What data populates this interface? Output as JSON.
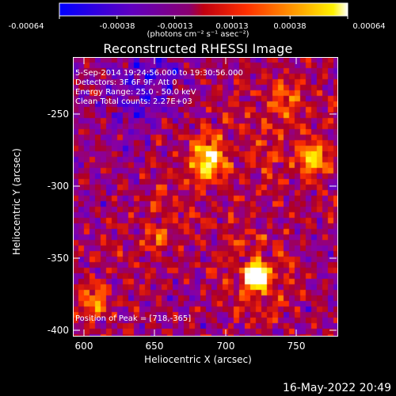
{
  "colorbar": {
    "ticks": [
      "-0.00064",
      "-0.00038",
      "-0.00013",
      "0.00013",
      "0.00038",
      "0.00064"
    ],
    "unit_label": "(photons cm⁻² s⁻¹ asec⁻²)"
  },
  "plot": {
    "title": "Reconstructed RHESSI Image",
    "info_lines": [
      "5-Sep-2014 19:24:56.000 to 19:30:56.000",
      "Detectors: 3F 6F 9F, Att 0",
      "Energy Range: 25.0 - 50.0 keV",
      "Clean     Total counts: 2.27E+03"
    ],
    "peak_label": "Position of Peak = [718,-365]",
    "xlabel": "Heliocentric X (arcsec)",
    "ylabel": "Heliocentric Y (arcsec)",
    "x_ticks": [
      "600",
      "650",
      "700",
      "750"
    ],
    "y_ticks": [
      "-250",
      "-300",
      "-350",
      "-400"
    ]
  },
  "footer": {
    "timestamp": "16-May-2022 20:49"
  },
  "chart_data": {
    "type": "heatmap",
    "title": "Reconstructed RHESSI Image",
    "xlabel": "Heliocentric X (arcsec)",
    "ylabel": "Heliocentric Y (arcsec)",
    "xlim": [
      585,
      778
    ],
    "ylim": [
      -405,
      -225
    ],
    "colorbar_range": [
      -0.00064,
      0.00064
    ],
    "peak_position": [
      718,
      -365
    ],
    "colors": [
      "#0000ff",
      "#5a00cc",
      "#8a00a0",
      "#b00020",
      "#ff3000",
      "#ff9a00",
      "#fff400",
      "#ffffff"
    ]
  }
}
